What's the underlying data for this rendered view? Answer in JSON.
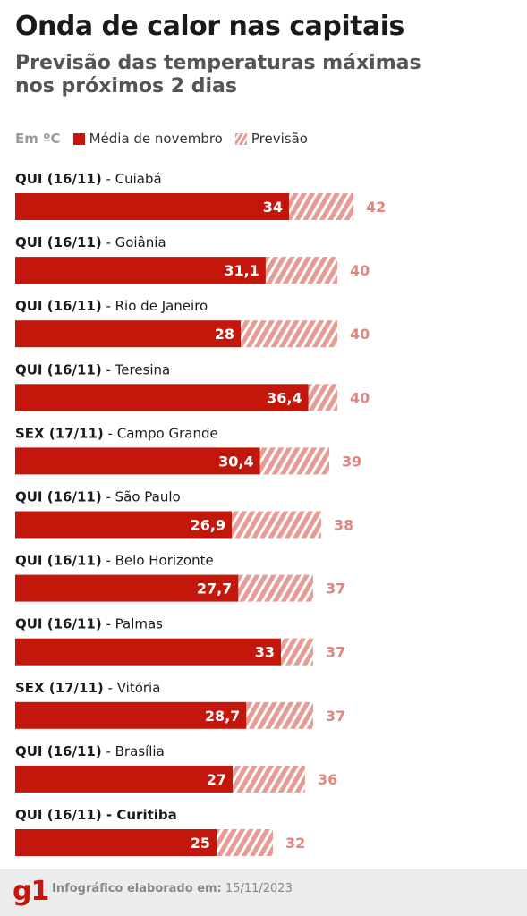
{
  "title": "Onda de calor nas capitais",
  "subtitle_line1": "Previsão das temperaturas máximas",
  "subtitle_line2": "nos próximos 2 dias",
  "legend": {
    "unit": "Em ºC",
    "average_label": "Média de novembro",
    "forecast_label": "Previsão"
  },
  "colors": {
    "average": "#c4170c",
    "forecast": "#e89a94",
    "forecast_text": "#e0857f"
  },
  "chart_data": {
    "type": "bar",
    "orientation": "horizontal",
    "unit": "ºC",
    "categories": [
      {
        "day": "QUI (16/11)",
        "city": "Cuiabá"
      },
      {
        "day": "QUI (16/11)",
        "city": "Goiânia"
      },
      {
        "day": "QUI (16/11)",
        "city": "Rio de Janeiro"
      },
      {
        "day": "QUI (16/11)",
        "city": "Teresina"
      },
      {
        "day": "SEX (17/11)",
        "city": "Campo Grande"
      },
      {
        "day": "QUI (16/11)",
        "city": "São Paulo"
      },
      {
        "day": "QUI (16/11)",
        "city": "Belo Horizonte"
      },
      {
        "day": "QUI (16/11)",
        "city": "Palmas"
      },
      {
        "day": "SEX (17/11)",
        "city": "Vitória"
      },
      {
        "day": "QUI (16/11)",
        "city": "Brasília"
      },
      {
        "day": "QUI (16/11)",
        "city": "Curitiba"
      }
    ],
    "average_labels": [
      "34",
      "31,1",
      "28",
      "36,4",
      "30,4",
      "26,9",
      "27,7",
      "33",
      "28,7",
      "27",
      "25"
    ],
    "forecast_labels": [
      "42",
      "40",
      "40",
      "40",
      "39",
      "38",
      "37",
      "37",
      "37",
      "36",
      "32"
    ],
    "series": [
      {
        "name": "Média de novembro",
        "values": [
          34,
          31.1,
          28,
          36.4,
          30.4,
          26.9,
          27.7,
          33,
          28.7,
          27,
          25
        ]
      },
      {
        "name": "Previsão",
        "values": [
          42,
          40,
          40,
          40,
          39,
          38,
          37,
          37,
          37,
          36,
          32
        ]
      }
    ],
    "xlim": [
      0,
      42
    ]
  },
  "footer": {
    "logo": "g1",
    "label": "Infográfico elaborado em:",
    "date": "15/11/2023"
  }
}
